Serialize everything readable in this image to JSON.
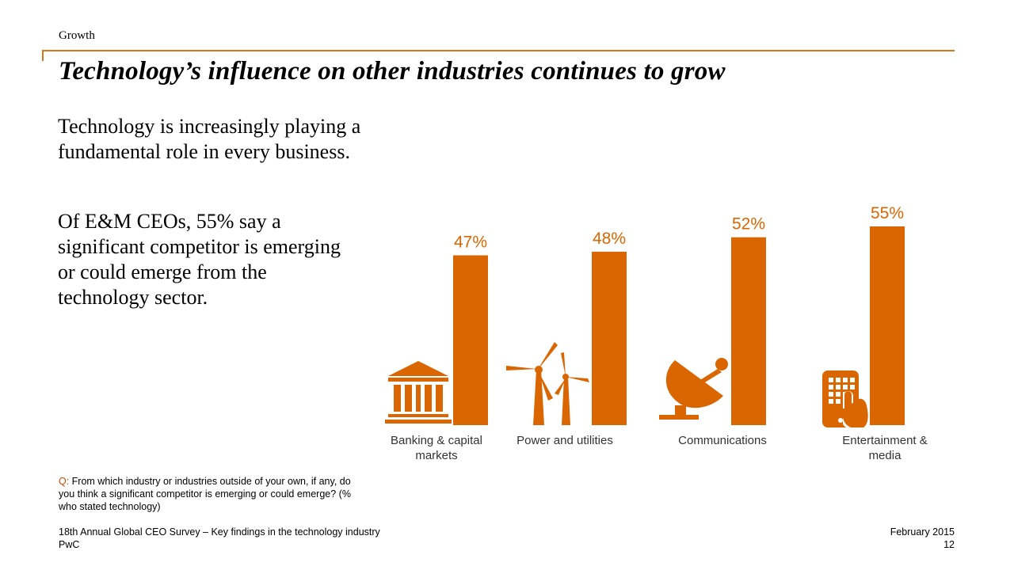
{
  "header": {
    "section": "Growth",
    "title": "Technology’s influence on other industries continues to grow"
  },
  "body": {
    "paragraph_1": "Technology is increasingly playing a fundamental role in every business.",
    "paragraph_2": "Of E&M CEOs, 55% say a significant competitor is emerging or could emerge from the technology sector."
  },
  "chart_data": {
    "type": "bar",
    "categories": [
      "Banking & capital markets",
      "Power and utilities",
      "Communications",
      "Entertainment & media"
    ],
    "category_lines": [
      [
        "Banking & capital",
        "markets"
      ],
      [
        "Power and utilities"
      ],
      [
        "Communications"
      ],
      [
        "Entertainment &",
        "media"
      ]
    ],
    "values": [
      47,
      48,
      52,
      55
    ],
    "value_labels": [
      "47%",
      "48%",
      "52%",
      "55%"
    ],
    "icons": [
      "bank-icon",
      "wind-turbine-icon",
      "satellite-dish-icon",
      "tablet-touch-icon"
    ],
    "title": "",
    "xlabel": "",
    "ylabel": "",
    "grid": false,
    "bar_color": "#d96600",
    "label_color": "#d96600"
  },
  "question": {
    "prefix": "Q:",
    "text": " From which industry or industries outside of your own, if any, do you think a significant competitor is emerging or could emerge? (% who stated technology)"
  },
  "footer": {
    "source": "18th Annual Global CEO Survey – Key findings in the technology industry",
    "brand": "PwC",
    "date": "February 2015",
    "page_number": "12"
  },
  "colors": {
    "accent_rule": "#d57a1c",
    "question_prefix": "#d04a02"
  }
}
